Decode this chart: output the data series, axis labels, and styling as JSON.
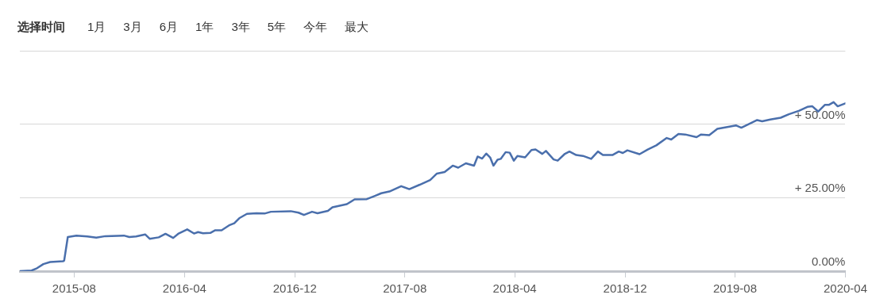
{
  "chart_data": {
    "type": "line",
    "annotations": [
      "选择时间",
      "1月",
      "3月",
      "6月",
      "1年",
      "3年",
      "5年",
      "今年",
      "最大"
    ],
    "x": [
      "2015-04-03",
      "2015-04-29",
      "2015-05-11",
      "2015-05-25",
      "2015-06-09",
      "2015-07-08",
      "2015-07-10",
      "2015-07-18",
      "2015-08-06",
      "2015-08-30",
      "2015-09-19",
      "2015-10-09",
      "2015-11-19",
      "2015-12-01",
      "2015-12-16",
      "2016-01-05",
      "2016-01-15",
      "2016-02-04",
      "2016-02-19",
      "2016-03-07",
      "2016-03-18",
      "2016-04-07",
      "2016-04-22",
      "2016-05-01",
      "2016-05-12",
      "2016-05-28",
      "2016-06-08",
      "2016-06-22",
      "2016-07-10",
      "2016-07-20",
      "2016-07-31",
      "2016-08-17",
      "2016-09-07",
      "2016-09-25",
      "2016-10-09",
      "2016-11-22",
      "2016-12-09",
      "2016-12-21",
      "2017-01-08",
      "2017-01-20",
      "2017-02-12",
      "2017-02-22",
      "2017-03-26",
      "2017-04-12",
      "2017-05-09",
      "2017-05-27",
      "2017-06-10",
      "2017-06-28",
      "2017-07-24",
      "2017-08-11",
      "2017-09-03",
      "2017-09-26",
      "2017-10-11",
      "2017-10-28",
      "2017-11-15",
      "2017-11-27",
      "2017-12-14",
      "2018-01-01",
      "2018-01-09",
      "2018-01-19",
      "2018-01-28",
      "2018-02-06",
      "2018-02-13",
      "2018-02-22",
      "2018-03-01",
      "2018-03-12",
      "2018-03-21",
      "2018-03-30",
      "2018-04-07",
      "2018-04-24",
      "2018-05-08",
      "2018-05-17",
      "2018-06-01",
      "2018-06-09",
      "2018-06-26",
      "2018-07-05",
      "2018-07-20",
      "2018-07-31",
      "2018-08-15",
      "2018-08-30",
      "2018-09-17",
      "2018-10-02",
      "2018-10-13",
      "2018-11-03",
      "2018-11-17",
      "2018-11-26",
      "2018-12-06",
      "2019-01-02",
      "2019-01-20",
      "2019-02-08",
      "2019-03-03",
      "2019-03-13",
      "2019-03-29",
      "2019-04-13",
      "2019-05-08",
      "2019-05-18",
      "2019-06-05",
      "2019-06-23",
      "2019-07-10",
      "2019-08-03",
      "2019-08-15",
      "2019-09-19",
      "2019-09-30",
      "2019-10-18",
      "2019-11-10",
      "2019-11-28",
      "2019-12-21",
      "2020-01-08",
      "2020-01-19",
      "2020-02-01",
      "2020-02-16",
      "2020-02-25",
      "2020-03-06",
      "2020-03-15",
      "2020-04-01"
    ],
    "series": [
      {
        "color": "#4a6fac",
        "values": [
          0,
          0.2,
          1.0,
          2.4,
          3.1,
          3.4,
          3.6,
          11.6,
          12.1,
          11.8,
          11.4,
          11.9,
          12.1,
          11.6,
          11.8,
          12.5,
          11.0,
          11.5,
          12.7,
          11.3,
          12.7,
          14.2,
          12.8,
          13.3,
          12.9,
          13.0,
          13.9,
          13.9,
          15.7,
          16.3,
          18.0,
          19.5,
          19.7,
          19.6,
          20.2,
          20.4,
          19.9,
          19.1,
          20.2,
          19.7,
          20.5,
          21.7,
          22.8,
          24.4,
          24.5,
          25.6,
          26.5,
          27.1,
          28.9,
          27.9,
          29.4,
          31.0,
          33.2,
          33.7,
          35.9,
          35.2,
          36.7,
          35.9,
          39.0,
          38.3,
          40.0,
          38.6,
          35.9,
          37.9,
          38.2,
          40.5,
          40.3,
          37.6,
          39.2,
          38.7,
          41.2,
          41.4,
          39.9,
          40.9,
          38.0,
          37.6,
          39.8,
          40.7,
          39.5,
          39.2,
          38.2,
          40.7,
          39.5,
          39.5,
          40.7,
          40.2,
          41.1,
          39.8,
          41.4,
          42.8,
          45.3,
          44.8,
          46.7,
          46.5,
          45.6,
          46.5,
          46.3,
          48.4,
          48.9,
          49.6,
          48.8,
          51.4,
          51.0,
          51.6,
          52.2,
          53.4,
          54.6,
          55.9,
          56.1,
          54.3,
          56.6,
          56.6,
          57.5,
          56.1,
          57.1
        ]
      }
    ],
    "xlim": [
      "2015-04-03",
      "2020-04-01"
    ],
    "xticks": [
      "2015-08",
      "2016-04",
      "2016-12",
      "2017-08",
      "2018-04",
      "2018-12",
      "2019-08",
      "2020-04"
    ],
    "ylim": [
      0,
      75
    ],
    "yticks": [
      {
        "value": 0,
        "label": "0.00%"
      },
      {
        "value": 25,
        "label": "+ 25.00%"
      },
      {
        "value": 50,
        "label": "+ 50.00%"
      }
    ],
    "grid": "y",
    "legend": false,
    "marker": "none",
    "line_style": "solid"
  }
}
